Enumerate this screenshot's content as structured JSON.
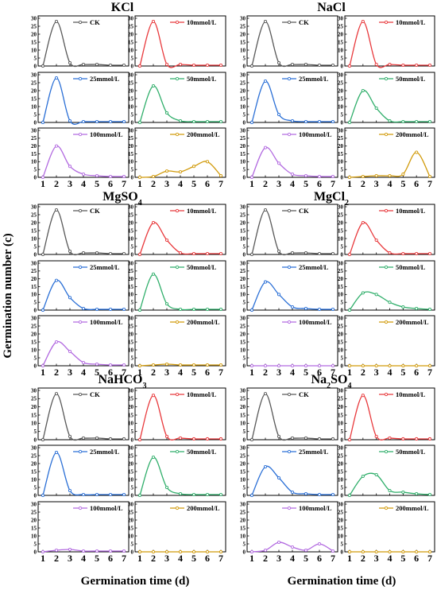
{
  "y_axis_title": "Germination number (c)",
  "x_axis_title": "Germination time (d)",
  "x_ticks": [
    "1",
    "2",
    "3",
    "4",
    "5",
    "6",
    "7"
  ],
  "y_ticks": [
    "0",
    "5",
    "10",
    "15",
    "20",
    "25",
    "30"
  ],
  "colors": {
    "CK": "#595959",
    "10mmol/L": "#e8393c",
    "25mmol/L": "#2a6fd6",
    "50mmol/L": "#2fae6a",
    "100mmol/L": "#b26ae0",
    "200mmol/L": "#d19a0a"
  },
  "chart_data": {
    "type": "line",
    "x": [
      1,
      2,
      3,
      4,
      5,
      6,
      7
    ],
    "xlabel": "Germination time (d)",
    "ylabel": "Germination number (c)",
    "ylim": [
      0,
      30
    ],
    "legend_placement": "top-right",
    "groups": [
      {
        "title": "KCl",
        "title_parts": [
          {
            "t": "KCl"
          }
        ],
        "series": [
          {
            "name": "CK",
            "values": [
              0,
              28,
              2,
              1,
              1,
              0.5,
              0.5
            ]
          },
          {
            "name": "10mmol/L",
            "values": [
              0,
              28,
              1,
              1,
              0.5,
              0.5,
              0.5
            ]
          },
          {
            "name": "25mmol/L",
            "values": [
              0,
              28,
              1,
              0.5,
              0.5,
              0.5,
              0.5
            ]
          },
          {
            "name": "50mmol/L",
            "values": [
              0,
              23,
              6,
              1,
              0.5,
              0.5,
              0.5
            ]
          },
          {
            "name": "100mmol/L",
            "values": [
              0,
              20,
              7,
              2,
              1,
              0.5,
              0.5
            ]
          },
          {
            "name": "200mmol/L",
            "values": [
              0,
              0.5,
              4,
              3.5,
              7,
              10,
              1
            ]
          }
        ]
      },
      {
        "title": "NaCl",
        "title_parts": [
          {
            "t": "NaCl"
          }
        ],
        "series": [
          {
            "name": "CK",
            "values": [
              0,
              28,
              2,
              1,
              1,
              0.5,
              0.5
            ]
          },
          {
            "name": "10mmol/L",
            "values": [
              0,
              28,
              1,
              1,
              0.5,
              0.5,
              0.5
            ]
          },
          {
            "name": "25mmol/L",
            "values": [
              0,
              26,
              5,
              1,
              0.5,
              0.5,
              0.5
            ]
          },
          {
            "name": "50mmol/L",
            "values": [
              0,
              20,
              9,
              1,
              0.5,
              0.5,
              0.5
            ]
          },
          {
            "name": "100mmol/L",
            "values": [
              0,
              19,
              9,
              2,
              1,
              0.5,
              0.5
            ]
          },
          {
            "name": "200mmol/L",
            "values": [
              0,
              0.5,
              1,
              1,
              2,
              16,
              0.5
            ]
          }
        ]
      },
      {
        "title": "MgSO4",
        "title_parts": [
          {
            "t": "MgSO"
          },
          {
            "t": "4",
            "sub": true
          }
        ],
        "series": [
          {
            "name": "CK",
            "values": [
              0,
              28,
              2,
              1,
              1,
              0.5,
              0.5
            ]
          },
          {
            "name": "10mmol/L",
            "values": [
              0,
              20,
              9,
              1,
              0.5,
              0.5,
              0.5
            ]
          },
          {
            "name": "25mmol/L",
            "values": [
              0,
              19,
              8,
              1,
              0.5,
              0.5,
              0.5
            ]
          },
          {
            "name": "50mmol/L",
            "values": [
              0,
              23,
              4,
              0.5,
              0.5,
              0.5,
              0.5
            ]
          },
          {
            "name": "100mmol/L",
            "values": [
              0,
              15,
              9,
              2,
              1,
              0.5,
              0.5
            ]
          },
          {
            "name": "200mmol/L",
            "values": [
              0,
              0.5,
              1,
              0.5,
              0.5,
              0.5,
              0.5
            ]
          }
        ]
      },
      {
        "title": "MgCl2",
        "title_parts": [
          {
            "t": "MgCl"
          },
          {
            "t": "2",
            "sub": true
          }
        ],
        "series": [
          {
            "name": "CK",
            "values": [
              0,
              28,
              2,
              1,
              1,
              0.5,
              0.5
            ]
          },
          {
            "name": "10mmol/L",
            "values": [
              0,
              20,
              9,
              1,
              0.5,
              0.5,
              0.5
            ]
          },
          {
            "name": "25mmol/L",
            "values": [
              0,
              18,
              10,
              2,
              1,
              0.5,
              0.5
            ]
          },
          {
            "name": "50mmol/L",
            "values": [
              0,
              11,
              10,
              5,
              2,
              1,
              0.5
            ]
          },
          {
            "name": "100mmol/L",
            "values": [
              0,
              0,
              0,
              0,
              0,
              0,
              0
            ]
          },
          {
            "name": "200mmol/L",
            "values": [
              0,
              0,
              0,
              0,
              0,
              0,
              0
            ]
          }
        ]
      },
      {
        "title": "NaHCO3",
        "title_parts": [
          {
            "t": "NaHCO"
          },
          {
            "t": "3",
            "sub": true
          }
        ],
        "series": [
          {
            "name": "CK",
            "values": [
              0,
              28,
              2,
              1,
              1,
              0.5,
              0.5
            ]
          },
          {
            "name": "10mmol/L",
            "values": [
              0,
              27,
              2,
              1,
              0.5,
              0.5,
              0.5
            ]
          },
          {
            "name": "25mmol/L",
            "values": [
              0,
              27,
              3,
              0.5,
              0.5,
              0.5,
              0.5
            ]
          },
          {
            "name": "50mmol/L",
            "values": [
              0,
              24,
              5,
              1,
              0.5,
              0.5,
              0.5
            ]
          },
          {
            "name": "100mmol/L",
            "values": [
              0,
              1,
              1.5,
              0.5,
              0.5,
              0.5,
              0.5
            ]
          },
          {
            "name": "200mmol/L",
            "values": [
              0,
              0,
              0,
              0,
              0,
              0,
              0
            ]
          }
        ]
      },
      {
        "title": "Na2SO4",
        "title_parts": [
          {
            "t": "Na"
          },
          {
            "t": "2",
            "sub": true
          },
          {
            "t": "SO"
          },
          {
            "t": "4",
            "sub": true
          }
        ],
        "series": [
          {
            "name": "CK",
            "values": [
              0,
              28,
              2,
              1,
              1,
              0.5,
              0.5
            ]
          },
          {
            "name": "10mmol/L",
            "values": [
              0,
              27,
              2,
              1,
              0.5,
              0.5,
              0.5
            ]
          },
          {
            "name": "25mmol/L",
            "values": [
              0,
              18,
              11,
              2,
              1,
              0.5,
              0.5
            ]
          },
          {
            "name": "50mmol/L",
            "values": [
              0,
              12,
              13,
              3,
              2,
              1,
              0.5
            ]
          },
          {
            "name": "100mmol/L",
            "values": [
              0,
              1,
              6,
              3,
              1,
              5,
              0.5
            ]
          },
          {
            "name": "200mmol/L",
            "values": [
              0,
              0,
              0,
              0,
              0,
              0,
              0
            ]
          }
        ]
      }
    ]
  }
}
